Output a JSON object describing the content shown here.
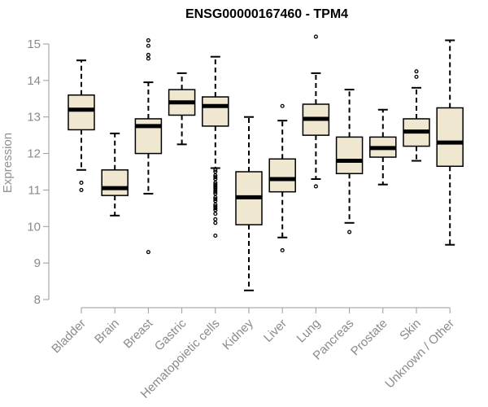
{
  "chart_data": {
    "type": "boxplot",
    "title": "ENSG00000167460 - TPM4",
    "xlabel": "",
    "ylabel": "Expression",
    "ylim": [
      8,
      15
    ],
    "yticks": [
      8,
      9,
      10,
      11,
      12,
      13,
      14,
      15
    ],
    "grid": false,
    "colors": {
      "box_fill": "#efe7d0",
      "stroke": "#000000",
      "axis": "#9a9a9a",
      "tick_text": "#8a8a8a"
    },
    "categories": [
      "Bladder",
      "Brain",
      "Breast",
      "Gastric",
      "Hematopoietic cells",
      "Kidney",
      "Liver",
      "Lung",
      "Pancreas",
      "Prostate",
      "Skin",
      "Unknown / Other"
    ],
    "boxes": [
      {
        "category": "Bladder",
        "whisker_low": 11.55,
        "q1": 12.65,
        "median": 13.2,
        "q3": 13.6,
        "whisker_high": 14.55,
        "outliers": [
          11.0,
          11.2
        ]
      },
      {
        "category": "Brain",
        "whisker_low": 10.3,
        "q1": 10.85,
        "median": 11.05,
        "q3": 11.55,
        "whisker_high": 12.55,
        "outliers": []
      },
      {
        "category": "Breast",
        "whisker_low": 10.9,
        "q1": 12.0,
        "median": 12.75,
        "q3": 12.95,
        "whisker_high": 13.95,
        "outliers": [
          9.3,
          14.6,
          14.7,
          14.95,
          15.1
        ]
      },
      {
        "category": "Gastric",
        "whisker_low": 12.25,
        "q1": 13.05,
        "median": 13.4,
        "q3": 13.75,
        "whisker_high": 14.2,
        "outliers": []
      },
      {
        "category": "Hematopoietic cells",
        "whisker_low": 11.6,
        "q1": 12.75,
        "median": 13.3,
        "q3": 13.55,
        "whisker_high": 14.65,
        "outliers": [
          11.55,
          11.5,
          11.4,
          11.35,
          11.3,
          11.2,
          11.15,
          11.1,
          11.05,
          11.0,
          10.95,
          10.9,
          10.8,
          10.75,
          10.7,
          10.6,
          10.55,
          10.5,
          10.45,
          10.35,
          10.2,
          10.1,
          9.75
        ]
      },
      {
        "category": "Kidney",
        "whisker_low": 8.25,
        "q1": 10.05,
        "median": 10.8,
        "q3": 11.5,
        "whisker_high": 13.0,
        "outliers": []
      },
      {
        "category": "Liver",
        "whisker_low": 9.7,
        "q1": 10.95,
        "median": 11.3,
        "q3": 11.85,
        "whisker_high": 12.9,
        "outliers": [
          9.35,
          13.3
        ]
      },
      {
        "category": "Lung",
        "whisker_low": 11.3,
        "q1": 12.5,
        "median": 12.95,
        "q3": 13.35,
        "whisker_high": 14.2,
        "outliers": [
          11.1,
          15.2
        ]
      },
      {
        "category": "Pancreas",
        "whisker_low": 10.1,
        "q1": 11.45,
        "median": 11.8,
        "q3": 12.45,
        "whisker_high": 13.75,
        "outliers": [
          9.85
        ]
      },
      {
        "category": "Prostate",
        "whisker_low": 11.15,
        "q1": 11.9,
        "median": 12.15,
        "q3": 12.45,
        "whisker_high": 13.2,
        "outliers": []
      },
      {
        "category": "Skin",
        "whisker_low": 11.8,
        "q1": 12.2,
        "median": 12.6,
        "q3": 12.95,
        "whisker_high": 13.8,
        "outliers": [
          14.1,
          14.25
        ]
      },
      {
        "category": "Unknown / Other",
        "whisker_low": 9.5,
        "q1": 11.65,
        "median": 12.3,
        "q3": 13.25,
        "whisker_high": 15.1,
        "outliers": []
      }
    ]
  }
}
